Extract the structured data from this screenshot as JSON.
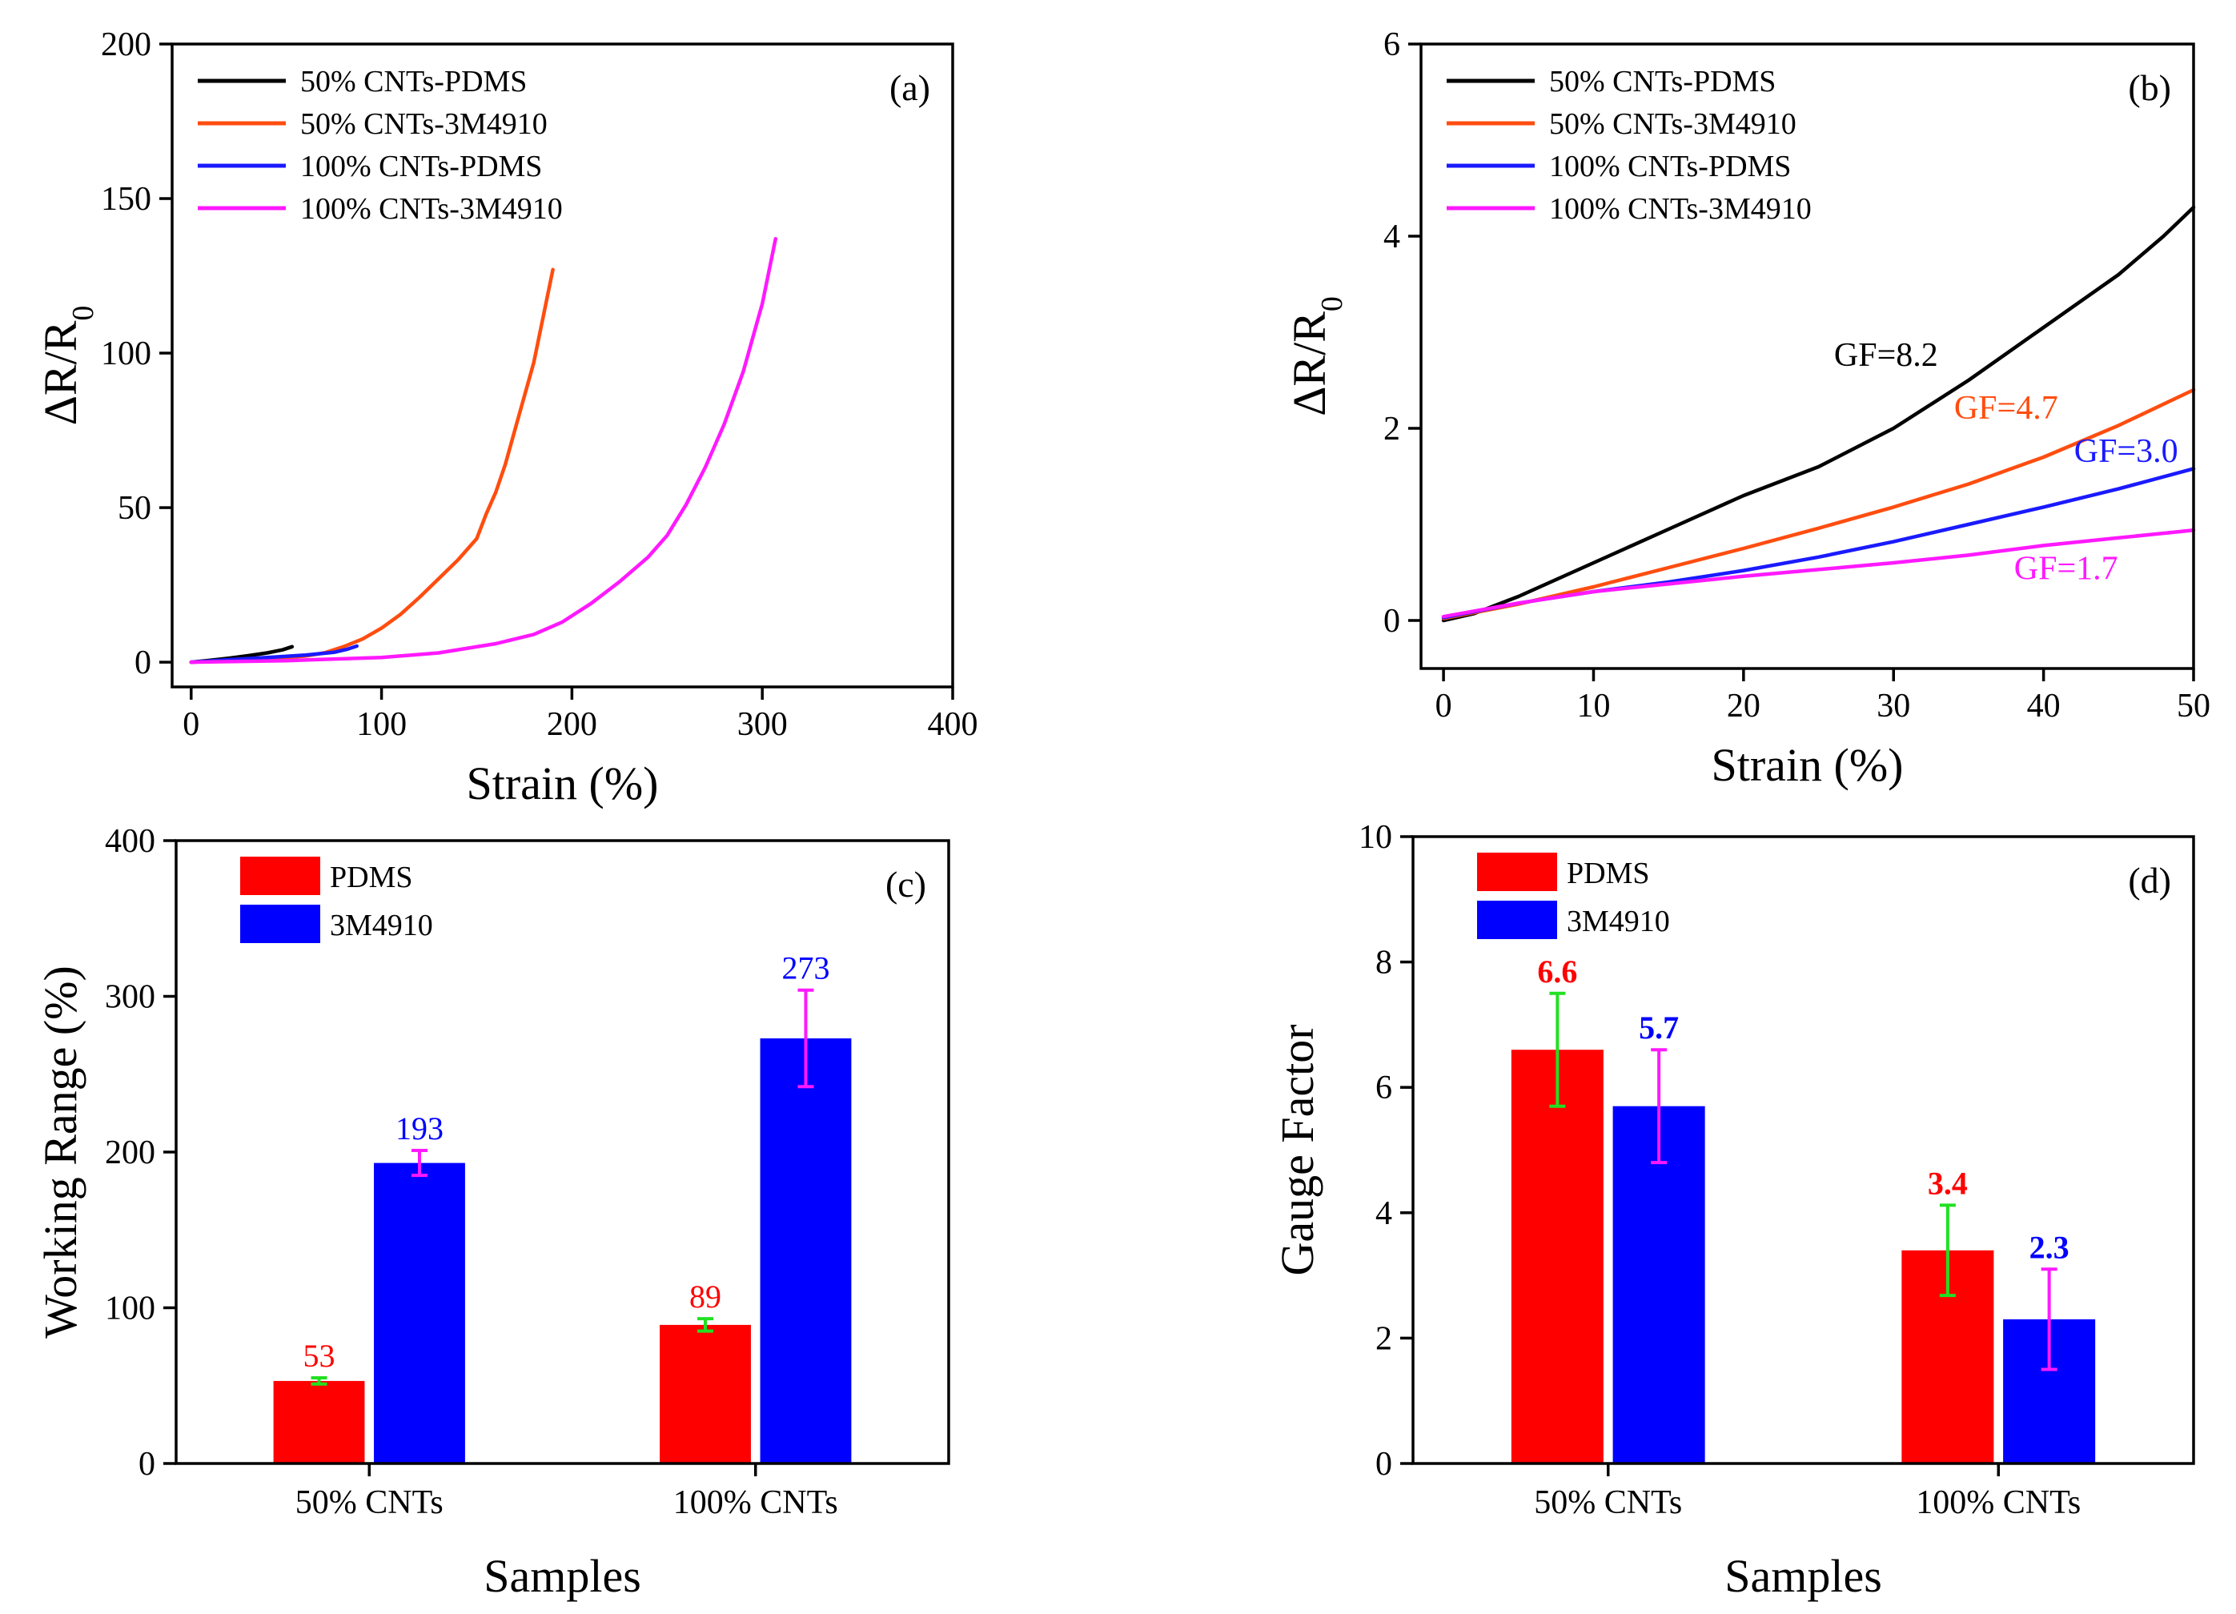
{
  "figure_title": "",
  "colors": {
    "black": "#000000",
    "orange": "#ff4d0f",
    "blue": "#1a1aff",
    "magenta": "#ff19ff",
    "bar_red": "#ff0000",
    "bar_blue": "#0000ff",
    "err_green": "#22e022",
    "err_magenta": "#ff19ff"
  },
  "chart_data": [
    {
      "id": "a",
      "panel_label": "(a)",
      "type": "line",
      "xlabel": "Strain (%)",
      "ylabel_main": "ΔR/R",
      "ylabel_sub": "0",
      "xlim": [
        -10,
        400
      ],
      "ylim": [
        -8,
        200
      ],
      "xticks": [
        0,
        100,
        200,
        300,
        400
      ],
      "yticks": [
        0,
        50,
        100,
        150,
        200
      ],
      "legend_position": "top-left",
      "series": [
        {
          "name": "50% CNTs-PDMS",
          "color": "#000000",
          "points": [
            [
              0,
              0
            ],
            [
              10,
              0.6
            ],
            [
              20,
              1.3
            ],
            [
              30,
              2.1
            ],
            [
              40,
              3
            ],
            [
              48,
              4
            ],
            [
              53,
              5
            ]
          ]
        },
        {
          "name": "50% CNTs-3M4910",
          "color": "#ff4d0f",
          "points": [
            [
              0,
              0
            ],
            [
              20,
              0.5
            ],
            [
              40,
              1
            ],
            [
              60,
              2
            ],
            [
              70,
              3
            ],
            [
              80,
              5
            ],
            [
              90,
              7.5
            ],
            [
              100,
              11
            ],
            [
              110,
              15.5
            ],
            [
              120,
              21
            ],
            [
              130,
              27
            ],
            [
              140,
              33
            ],
            [
              150,
              40
            ],
            [
              155,
              48
            ],
            [
              160,
              55
            ],
            [
              165,
              64
            ],
            [
              170,
              75
            ],
            [
              175,
              86
            ],
            [
              180,
              97
            ],
            [
              185,
              112
            ],
            [
              190,
              127
            ]
          ]
        },
        {
          "name": "100% CNTs-PDMS",
          "color": "#1a1aff",
          "points": [
            [
              0,
              0
            ],
            [
              20,
              0.8
            ],
            [
              40,
              1.5
            ],
            [
              60,
              2.3
            ],
            [
              75,
              3.2
            ],
            [
              82,
              4.2
            ],
            [
              87,
              5.2
            ]
          ]
        },
        {
          "name": "100% CNTs-3M4910",
          "color": "#ff19ff",
          "points": [
            [
              0,
              0
            ],
            [
              50,
              0.5
            ],
            [
              100,
              1.5
            ],
            [
              130,
              3
            ],
            [
              160,
              6
            ],
            [
              180,
              9
            ],
            [
              195,
              13
            ],
            [
              210,
              19
            ],
            [
              225,
              26
            ],
            [
              240,
              34
            ],
            [
              250,
              41
            ],
            [
              260,
              51
            ],
            [
              270,
              63
            ],
            [
              280,
              77
            ],
            [
              290,
              94
            ],
            [
              300,
              116
            ],
            [
              307,
              137
            ]
          ]
        }
      ]
    },
    {
      "id": "b",
      "panel_label": "(b)",
      "type": "line",
      "xlabel": "Strain (%)",
      "ylabel_main": "ΔR/R",
      "ylabel_sub": "0",
      "xlim": [
        -1.5,
        50
      ],
      "ylim": [
        -0.5,
        6
      ],
      "xticks": [
        0,
        10,
        20,
        30,
        40,
        50
      ],
      "yticks": [
        0,
        2,
        4,
        6
      ],
      "legend_position": "top-left",
      "series": [
        {
          "name": "50% CNTs-PDMS",
          "color": "#000000",
          "points": [
            [
              0,
              0
            ],
            [
              2,
              0.07
            ],
            [
              5,
              0.25
            ],
            [
              10,
              0.6
            ],
            [
              15,
              0.95
            ],
            [
              20,
              1.3
            ],
            [
              25,
              1.6
            ],
            [
              30,
              2.0
            ],
            [
              35,
              2.5
            ],
            [
              40,
              3.05
            ],
            [
              45,
              3.6
            ],
            [
              48,
              4.0
            ],
            [
              50,
              4.3
            ]
          ]
        },
        {
          "name": "50% CNTs-3M4910",
          "color": "#ff4d0f",
          "points": [
            [
              0,
              0.02
            ],
            [
              5,
              0.17
            ],
            [
              10,
              0.35
            ],
            [
              15,
              0.55
            ],
            [
              20,
              0.75
            ],
            [
              25,
              0.96
            ],
            [
              30,
              1.18
            ],
            [
              35,
              1.42
            ],
            [
              40,
              1.7
            ],
            [
              45,
              2.03
            ],
            [
              50,
              2.4
            ]
          ]
        },
        {
          "name": "100% CNTs-PDMS",
          "color": "#1a1aff",
          "points": [
            [
              0,
              0.03
            ],
            [
              5,
              0.18
            ],
            [
              10,
              0.3
            ],
            [
              15,
              0.4
            ],
            [
              20,
              0.52
            ],
            [
              25,
              0.66
            ],
            [
              30,
              0.82
            ],
            [
              35,
              1.0
            ],
            [
              40,
              1.18
            ],
            [
              45,
              1.37
            ],
            [
              50,
              1.58
            ]
          ]
        },
        {
          "name": "100% CNTs-3M4910",
          "color": "#ff19ff",
          "points": [
            [
              0,
              0.04
            ],
            [
              5,
              0.18
            ],
            [
              10,
              0.3
            ],
            [
              15,
              0.38
            ],
            [
              20,
              0.46
            ],
            [
              25,
              0.53
            ],
            [
              30,
              0.6
            ],
            [
              35,
              0.68
            ],
            [
              40,
              0.78
            ],
            [
              45,
              0.86
            ],
            [
              50,
              0.94
            ]
          ]
        }
      ],
      "annotations": [
        {
          "text": "GF=8.2",
          "x": 29.5,
          "y": 2.65,
          "color": "#000000"
        },
        {
          "text": "GF=4.7",
          "x": 37.5,
          "y": 2.1,
          "color": "#ff4d0f"
        },
        {
          "text": "GF=3.0",
          "x": 45.5,
          "y": 1.65,
          "color": "#1a1aff"
        },
        {
          "text": "GF=1.7",
          "x": 41.5,
          "y": 0.43,
          "color": "#ff19ff"
        }
      ]
    },
    {
      "id": "c",
      "panel_label": "(c)",
      "type": "bar",
      "xlabel": "Samples",
      "ylabel": "Working Range (%)",
      "ylim": [
        0,
        400
      ],
      "yticks": [
        0,
        100,
        200,
        300,
        400
      ],
      "categories": [
        "50% CNTs",
        "100% CNTs"
      ],
      "legend_position": "top-left",
      "label_style": "normal",
      "series": [
        {
          "name": "PDMS",
          "color": "#ff0000",
          "err_color": "#22e022",
          "label_color": "#ff0000",
          "values": [
            53,
            89
          ],
          "errors": [
            2,
            4
          ],
          "labels": [
            "53",
            "89"
          ]
        },
        {
          "name": "3M4910",
          "color": "#0000ff",
          "err_color": "#ff19ff",
          "label_color": "#0000ff",
          "values": [
            193,
            273
          ],
          "errors": [
            8,
            31
          ],
          "labels": [
            "193",
            "273"
          ]
        }
      ]
    },
    {
      "id": "d",
      "panel_label": "(d)",
      "type": "bar",
      "xlabel": "Samples",
      "ylabel": "Gauge Factor",
      "ylim": [
        0,
        10
      ],
      "yticks": [
        0,
        2,
        4,
        6,
        8,
        10
      ],
      "categories": [
        "50% CNTs",
        "100% CNTs"
      ],
      "legend_position": "top-left",
      "label_style": "bold",
      "series": [
        {
          "name": "PDMS",
          "color": "#ff0000",
          "err_color": "#22e022",
          "label_color": "#ff0000",
          "values": [
            6.6,
            3.4
          ],
          "errors": [
            0.9,
            0.72
          ],
          "labels": [
            "6.6",
            "3.4"
          ]
        },
        {
          "name": "3M4910",
          "color": "#0000ff",
          "err_color": "#ff19ff",
          "label_color": "#0000ff",
          "values": [
            5.7,
            2.3
          ],
          "errors": [
            0.9,
            0.8
          ],
          "labels": [
            "5.7",
            "2.3"
          ]
        }
      ]
    }
  ]
}
